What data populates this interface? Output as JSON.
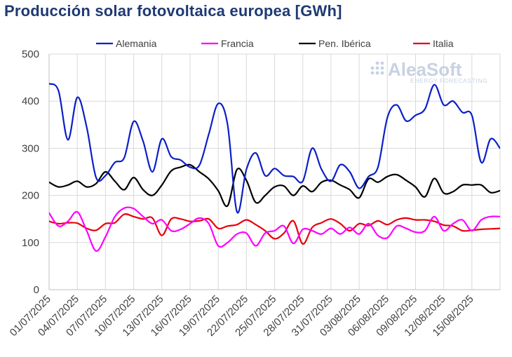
{
  "chart_data": {
    "type": "line",
    "title": "Producción solar fotovoltaica europea [GWh]",
    "xlabel": "",
    "ylabel": "",
    "ylim": [
      0,
      500
    ],
    "yticks": [
      0,
      100,
      200,
      300,
      400,
      500
    ],
    "xlim": [
      0,
      48
    ],
    "grid": true,
    "legend_position": "top",
    "xtick_labels": [
      "01/07/2025",
      "04/07/2025",
      "07/07/2025",
      "10/07/2025",
      "13/07/2025",
      "16/07/2025",
      "19/07/2025",
      "22/07/2025",
      "25/07/2025",
      "28/07/2025",
      "31/07/2025",
      "03/08/2025",
      "06/08/2025",
      "09/08/2025",
      "12/08/2025",
      "15/08/2025"
    ],
    "x": [
      0,
      1,
      2,
      3,
      4,
      5,
      6,
      7,
      8,
      9,
      10,
      11,
      12,
      13,
      14,
      15,
      16,
      17,
      18,
      19,
      20,
      21,
      22,
      23,
      24,
      25,
      26,
      27,
      28,
      29,
      30,
      31,
      32,
      33,
      34,
      35,
      36,
      37,
      38,
      39,
      40,
      41,
      42,
      43,
      44,
      45,
      46,
      47,
      48
    ],
    "series": [
      {
        "name": "Alemania",
        "color": "#0b1fc8",
        "values": [
          437,
          422,
          318,
          408,
          345,
          238,
          242,
          270,
          280,
          357,
          315,
          250,
          320,
          282,
          275,
          260,
          264,
          330,
          395,
          350,
          165,
          255,
          290,
          242,
          257,
          242,
          240,
          230,
          300,
          255,
          230,
          265,
          250,
          215,
          240,
          260,
          365,
          392,
          358,
          370,
          383,
          435,
          392,
          400,
          376,
          370,
          270,
          320,
          300
        ]
      },
      {
        "name": "Francia",
        "color": "#ff00ff",
        "values": [
          163,
          135,
          145,
          165,
          125,
          82,
          112,
          155,
          173,
          172,
          155,
          140,
          148,
          125,
          128,
          140,
          152,
          140,
          93,
          100,
          118,
          120,
          93,
          120,
          125,
          135,
          98,
          128,
          125,
          118,
          130,
          118,
          132,
          118,
          140,
          115,
          110,
          135,
          130,
          122,
          125,
          155,
          125,
          140,
          148,
          125,
          148,
          155,
          155
        ]
      },
      {
        "name": "Pen. Ibérica",
        "color": "#000000",
        "values": [
          228,
          218,
          222,
          230,
          218,
          225,
          250,
          230,
          212,
          238,
          212,
          200,
          222,
          252,
          260,
          265,
          250,
          235,
          210,
          178,
          255,
          232,
          185,
          200,
          218,
          220,
          200,
          220,
          208,
          228,
          232,
          222,
          212,
          195,
          235,
          228,
          240,
          244,
          232,
          218,
          197,
          236,
          205,
          208,
          222,
          222,
          222,
          206,
          210
        ]
      },
      {
        "name": "Italia",
        "color": "#e8000d",
        "values": [
          145,
          140,
          142,
          141,
          130,
          126,
          140,
          142,
          160,
          155,
          150,
          152,
          115,
          150,
          150,
          145,
          146,
          150,
          130,
          135,
          138,
          148,
          138,
          125,
          108,
          120,
          146,
          97,
          132,
          142,
          150,
          140,
          125,
          140,
          136,
          146,
          138,
          148,
          152,
          148,
          148,
          145,
          137,
          135,
          125,
          126,
          128,
          129,
          130
        ]
      }
    ]
  },
  "watermark": {
    "brand": "AleaSoft",
    "tagline": "ENERGY FORECASTING"
  }
}
